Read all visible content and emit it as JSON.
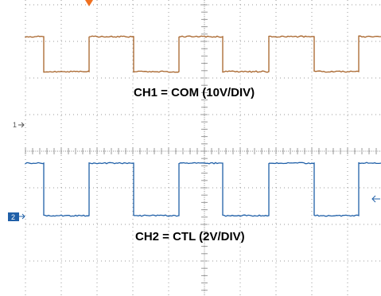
{
  "channels": [
    {
      "marker": "1",
      "label": "CH1 = COM (10V/DIV)"
    },
    {
      "marker": "2",
      "label": "CH2 = CTL (2V/DIV)"
    }
  ]
}
